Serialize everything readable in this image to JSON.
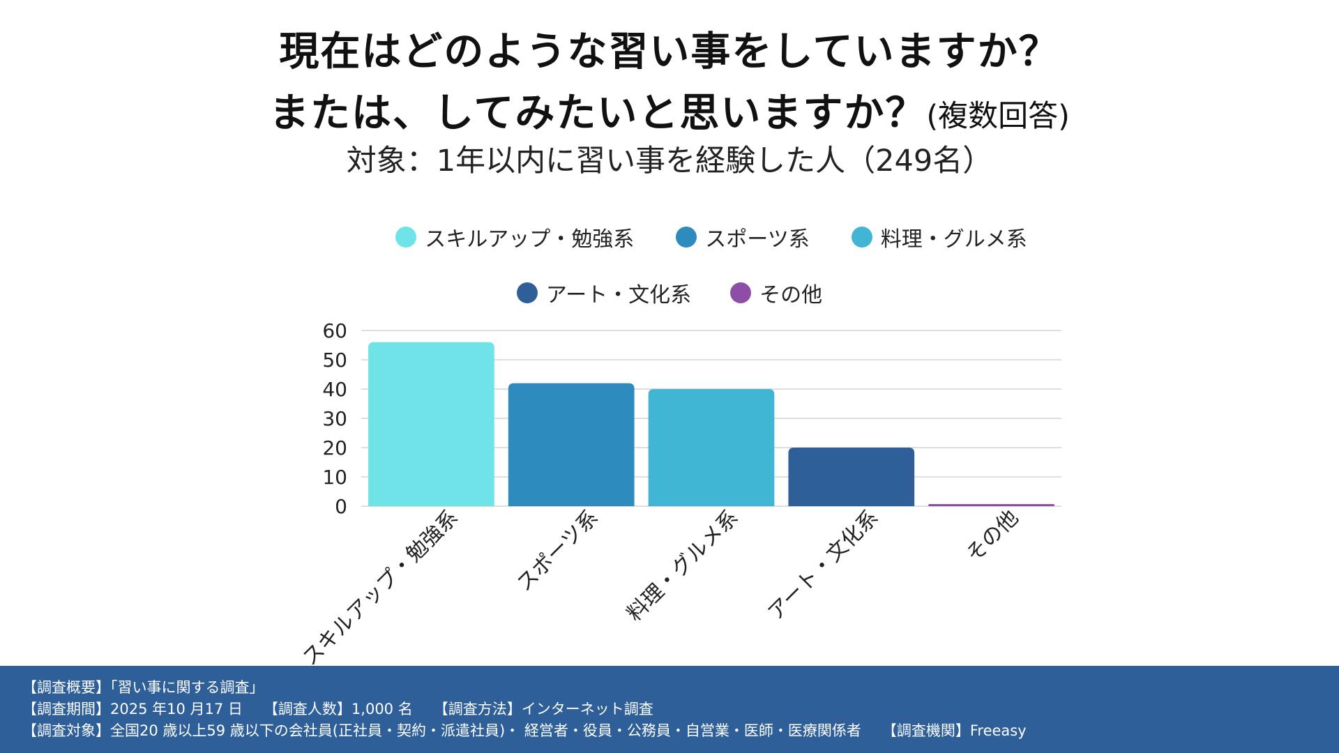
{
  "title": {
    "line1": "現在はどのような習い事をしていますか？",
    "line2": "または、してみたいと思いますか？",
    "note": "(複数回答)"
  },
  "subtitle": "対象：1年以内に習い事を経験した人（249名）",
  "legend": [
    {
      "label": "スキルアップ・勉強系",
      "color": "#6ee4e8"
    },
    {
      "label": "スポーツ系",
      "color": "#2e8bbd"
    },
    {
      "label": "料理・グルメ系",
      "color": "#41b6d4"
    },
    {
      "label": "アート・文化系",
      "color": "#2e5f98"
    },
    {
      "label": "その他",
      "color": "#8e4ea8"
    }
  ],
  "chart_data": {
    "type": "bar",
    "title": "現在はどのような習い事をしていますか？または、してみたいと思いますか？(複数回答)",
    "xlabel": "",
    "ylabel": "",
    "ylim": [
      0,
      60
    ],
    "yticks": [
      "60",
      "50",
      "40",
      "30",
      "20",
      "10",
      "0"
    ],
    "grid": true,
    "legend_position": "top-center",
    "categories": [
      "スキルアップ・勉強系",
      "スポーツ系",
      "料理・グルメ系",
      "アート・文化系",
      "その他"
    ],
    "values": [
      56,
      42,
      40,
      20,
      0.5
    ],
    "colors": [
      "#6ee4e8",
      "#2e8bbd",
      "#41b6d4",
      "#2e5f98",
      "#8e4ea8"
    ]
  },
  "footer": {
    "line1": "【調査概要】「習い事に関する調査」",
    "period": "【調査期間】2025 年10 月17 日",
    "count": "【調査人数】1,000 名",
    "method": "【調査方法】インターネット調査",
    "target": "【調査対象】全国20 歳以上59 歳以下の会社員(正社員・契約・派遣社員)・ 経営者・役員・公務員・自営業・医師・医療関係者",
    "agency": "【調査機関】Freeasy"
  }
}
